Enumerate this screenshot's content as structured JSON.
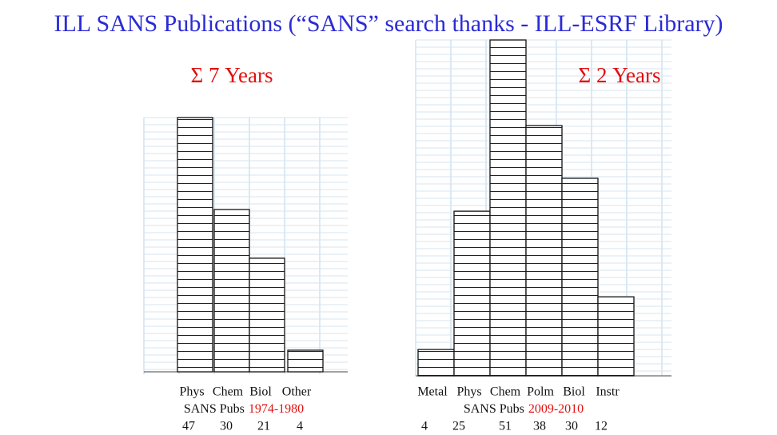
{
  "title": "ILL SANS Publications (“SANS” search thanks - ILL-ESRF Library)",
  "chart_data": [
    {
      "type": "bar",
      "title": "Σ 7 Years",
      "caption": "SANS Pubs",
      "period": "1974-1980",
      "categories": [
        "Phys",
        "Chem",
        "Biol",
        "Other"
      ],
      "values": [
        47,
        30,
        21,
        4
      ]
    },
    {
      "type": "bar",
      "title": "Σ 2 Years",
      "caption": "SANS Pubs",
      "period": "2009-2010",
      "categories": [
        "Metal",
        "Phys",
        "Chem",
        "Polm",
        "Biol",
        "Instr"
      ],
      "values": [
        4,
        25,
        51,
        38,
        30,
        12
      ]
    }
  ]
}
